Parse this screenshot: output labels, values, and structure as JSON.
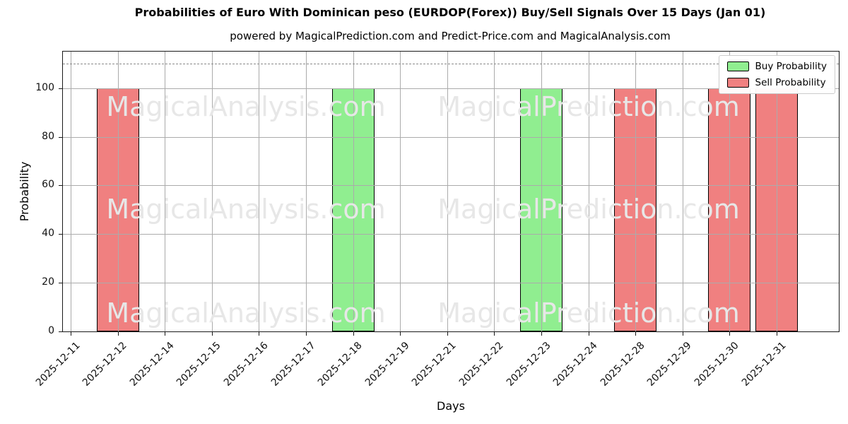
{
  "title": "Probabilities of Euro With Dominican peso (EURDOP(Forex)) Buy/Sell Signals Over 15 Days (Jan 01)",
  "subtitle": "powered by MagicalPrediction.com and Predict-Price.com and MagicalAnalysis.com",
  "watermarks": {
    "col1": "MagicalAnalysis.com",
    "col2": "MagicalPrediction.com"
  },
  "colors": {
    "buy": "#90ee90",
    "sell": "#f08080",
    "bar_edge": "#000000",
    "grid": "#ababab",
    "dashed_line": "#8a8a8a",
    "watermark": "#e7e7e7",
    "background": "#ffffff"
  },
  "chart_data": {
    "type": "bar",
    "title": "Probabilities of Euro With Dominican peso (EURDOP(Forex)) Buy/Sell Signals Over 15 Days (Jan 01)",
    "subtitle": "powered by MagicalPrediction.com and Predict-Price.com and MagicalAnalysis.com",
    "xlabel": "Days",
    "ylabel": "Probability",
    "ylim": [
      0,
      115
    ],
    "yticks": [
      0,
      20,
      40,
      60,
      80,
      100
    ],
    "grid": true,
    "dashed_hline_y": 110,
    "bar_width_frac": 0.9,
    "categories": [
      "2025-12-11",
      "2025-12-12",
      "2025-12-14",
      "2025-12-15",
      "2025-12-16",
      "2025-12-17",
      "2025-12-18",
      "2025-12-19",
      "2025-12-21",
      "2025-12-22",
      "2025-12-23",
      "2025-12-24",
      "2025-12-28",
      "2025-12-29",
      "2025-12-30",
      "2025-12-31"
    ],
    "series": [
      {
        "name": "Buy Probability",
        "color": "#90ee90",
        "values": [
          0,
          0,
          0,
          0,
          0,
          0,
          100,
          0,
          0,
          0,
          100,
          0,
          0,
          0,
          0,
          0
        ]
      },
      {
        "name": "Sell Probability",
        "color": "#f08080",
        "values": [
          0,
          100,
          0,
          0,
          0,
          0,
          0,
          0,
          0,
          0,
          0,
          0,
          100,
          0,
          100,
          100
        ]
      }
    ],
    "legend": {
      "position": "upper right",
      "entries": [
        {
          "label": "Buy Probability",
          "color": "#90ee90"
        },
        {
          "label": "Sell Probability",
          "color": "#f08080"
        }
      ]
    }
  }
}
